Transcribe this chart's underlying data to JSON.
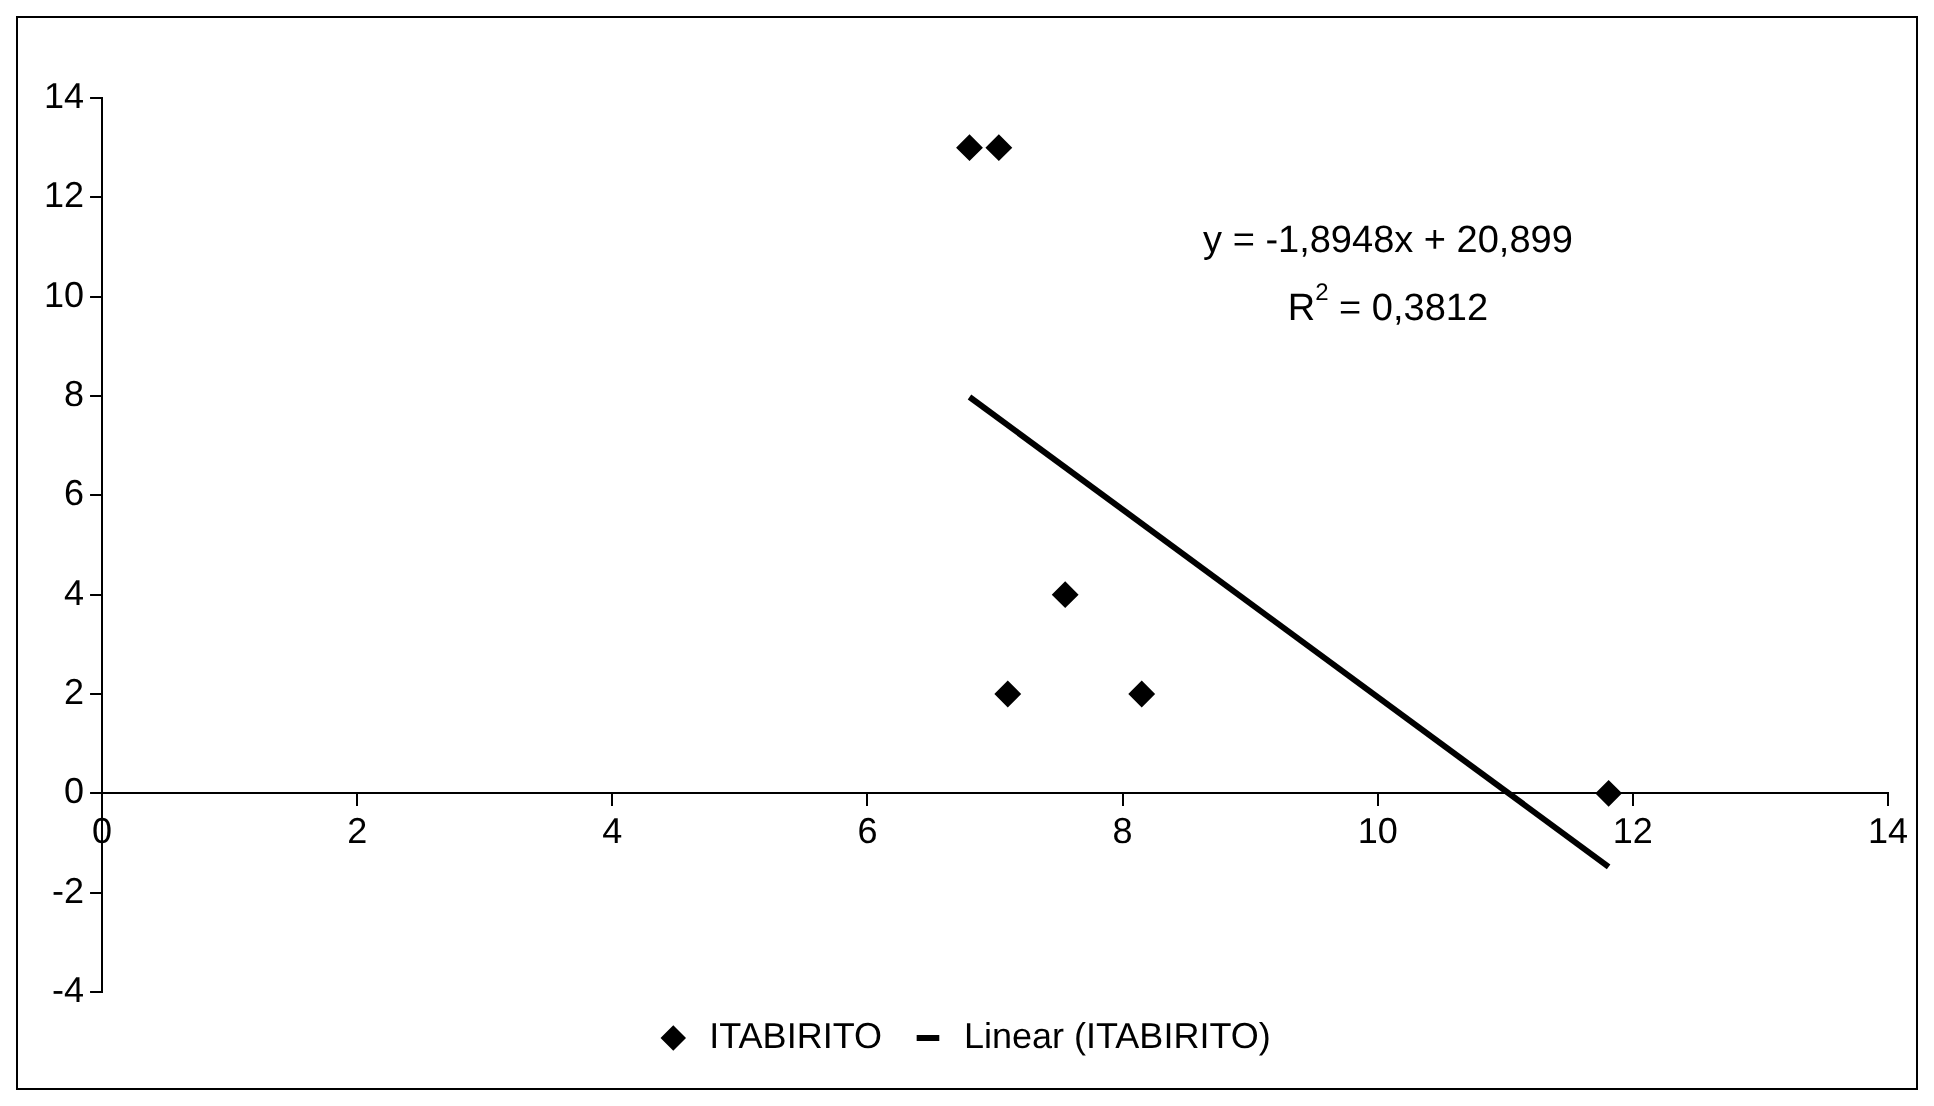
{
  "chart_data": {
    "type": "scatter",
    "legend": "bottom",
    "grid": false,
    "xlim": [
      0,
      14
    ],
    "xticks": [
      0,
      2,
      4,
      6,
      8,
      10,
      12,
      14
    ],
    "ylim": [
      -4,
      14
    ],
    "yticks": [
      -4,
      -2,
      0,
      2,
      4,
      6,
      8,
      10,
      12,
      14
    ],
    "annotations": [
      "y = -1,8948x + 20,899",
      "R$^{2}$ = 0,3812"
    ],
    "series": [
      {
        "name": "ITABIRITO",
        "type": "scatter",
        "marker": "diamond",
        "color": "#000000",
        "x": [
          6.8,
          7.03,
          7.1,
          7.55,
          8.15,
          11.81
        ],
        "values": [
          13,
          13,
          2,
          4,
          2,
          0
        ]
      },
      {
        "name": "Linear (ITABIRITO)",
        "type": "line",
        "marker": "none",
        "color": "#000000",
        "x": [
          6.8,
          11.81
        ],
        "values": [
          7.98,
          -1.48
        ]
      }
    ]
  }
}
